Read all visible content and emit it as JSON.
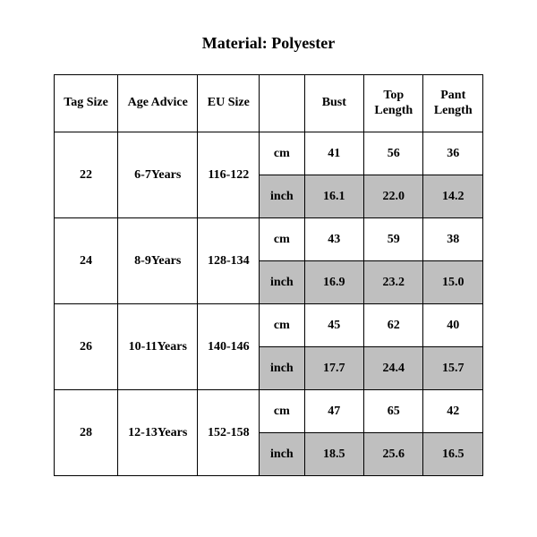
{
  "title": "Material: Polyester",
  "table": {
    "columns": [
      "Tag Size",
      "Age Advice",
      "EU Size",
      "",
      "Bust",
      "Top Length",
      "Pant Length"
    ],
    "unit_cm": "cm",
    "unit_inch": "inch",
    "shaded_bg": "#bfbfbf",
    "border_color": "#000000",
    "fontsize": 14,
    "header_fontsize": 14,
    "rows": [
      {
        "tag": "22",
        "age": "6-7Years",
        "eu": "116-122",
        "cm": {
          "bust": "41",
          "top": "56",
          "pant": "36"
        },
        "inch": {
          "bust": "16.1",
          "top": "22.0",
          "pant": "14.2"
        }
      },
      {
        "tag": "24",
        "age": "8-9Years",
        "eu": "128-134",
        "cm": {
          "bust": "43",
          "top": "59",
          "pant": "38"
        },
        "inch": {
          "bust": "16.9",
          "top": "23.2",
          "pant": "15.0"
        }
      },
      {
        "tag": "26",
        "age": "10-11Years",
        "eu": "140-146",
        "cm": {
          "bust": "45",
          "top": "62",
          "pant": "40"
        },
        "inch": {
          "bust": "17.7",
          "top": "24.4",
          "pant": "15.7"
        }
      },
      {
        "tag": "28",
        "age": "12-13Years",
        "eu": "152-158",
        "cm": {
          "bust": "47",
          "top": "65",
          "pant": "42"
        },
        "inch": {
          "bust": "18.5",
          "top": "25.6",
          "pant": "16.5"
        }
      }
    ]
  }
}
